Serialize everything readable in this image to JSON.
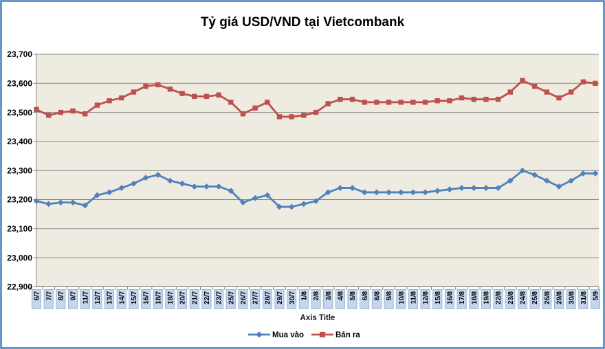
{
  "chart": {
    "colors": {
      "border": "#4a7ebb",
      "figure_bg": "#ffffff",
      "plot_bg": "#eeece1",
      "gridline": "#878787",
      "axis_line": "#808080",
      "buy_series": "#4f81bd",
      "sell_series": "#c0504d",
      "xlabel_box_fill": "#c4d6ee",
      "xlabel_box_border": "#8fa8cc",
      "text": "#000000"
    }
  },
  "chart_data": {
    "type": "line",
    "title": "Tỷ giá USD/VND tại Vietcombank",
    "xlabel": "Axis Title",
    "ylabel": "",
    "ylim": [
      22900,
      23700
    ],
    "ytick_step": 100,
    "ytick_labels": [
      "22,900",
      "23,000",
      "23,100",
      "23,200",
      "23,300",
      "23,400",
      "23,500",
      "23,600",
      "23,700"
    ],
    "grid": true,
    "legend_position": "bottom",
    "categories": [
      "6/7",
      "7/7",
      "8/7",
      "9/7",
      "11/7",
      "12/7",
      "13/7",
      "14/7",
      "15/7",
      "16/7",
      "18/7",
      "19/7",
      "20/7",
      "21/7",
      "22/7",
      "23/7",
      "25/7",
      "26/7",
      "27/7",
      "28/7",
      "29/7",
      "30/7",
      "1/8",
      "2/8",
      "3/8",
      "4/8",
      "5/8",
      "6/8",
      "8/8",
      "9/8",
      "10/8",
      "11/8",
      "12/8",
      "15/8",
      "16/8",
      "17/8",
      "18/8",
      "19/8",
      "22/8",
      "23/8",
      "24/8",
      "25/8",
      "26/8",
      "29/8",
      "30/8",
      "31/8",
      "5/9"
    ],
    "series": [
      {
        "name": "Mua vào",
        "color": "#4f81bd",
        "marker": "diamond",
        "values": [
          23195,
          23185,
          23190,
          23190,
          23180,
          23215,
          23225,
          23240,
          23255,
          23275,
          23285,
          23265,
          23255,
          23245,
          23245,
          23245,
          23230,
          23190,
          23205,
          23215,
          23175,
          23175,
          23185,
          23195,
          23225,
          23240,
          23240,
          23225,
          23225,
          23225,
          23225,
          23225,
          23225,
          23230,
          23235,
          23240,
          23240,
          23240,
          23240,
          23265,
          23300,
          23285,
          23265,
          23245,
          23265,
          23290,
          23290
        ]
      },
      {
        "name": "Bán ra",
        "color": "#c0504d",
        "marker": "square",
        "values": [
          23510,
          23490,
          23500,
          23505,
          23495,
          23525,
          23540,
          23550,
          23570,
          23590,
          23595,
          23580,
          23565,
          23555,
          23555,
          23560,
          23535,
          23495,
          23515,
          23535,
          23485,
          23485,
          23490,
          23500,
          23530,
          23545,
          23545,
          23535,
          23535,
          23535,
          23535,
          23535,
          23535,
          23540,
          23540,
          23550,
          23545,
          23545,
          23545,
          23570,
          23610,
          23590,
          23570,
          23550,
          23570,
          23605,
          23600
        ]
      }
    ]
  }
}
